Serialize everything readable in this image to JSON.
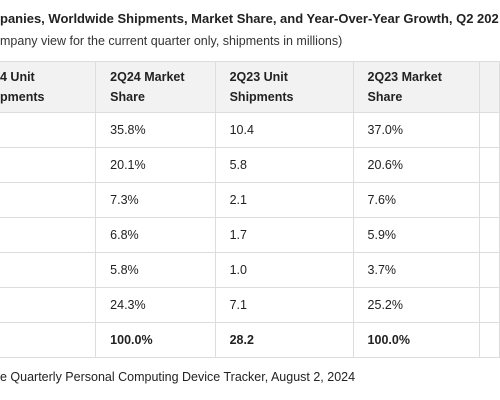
{
  "header": {
    "title": "panies, Worldwide Shipments, Market Share, and Year-Over-Year Growth, Q2 202",
    "subtitle": "mpany view for the current quarter only, shipments in millions)"
  },
  "table": {
    "columns": [
      [
        "4 Unit",
        "pments"
      ],
      [
        "2Q24 Market",
        "Share"
      ],
      [
        "2Q23 Unit",
        "Shipments"
      ],
      [
        "2Q23 Market",
        "Share"
      ]
    ],
    "rows": [
      [
        "",
        "35.8%",
        "10.4",
        "37.0%"
      ],
      [
        "",
        "20.1%",
        "5.8",
        "20.6%"
      ],
      [
        "",
        "7.3%",
        "2.1",
        "7.6%"
      ],
      [
        "",
        "6.8%",
        "1.7",
        "5.9%"
      ],
      [
        "",
        "5.8%",
        "1.0",
        "3.7%"
      ],
      [
        "",
        "24.3%",
        "7.1",
        "25.2%"
      ],
      [
        "",
        "100.0%",
        "28.2",
        "100.0%"
      ]
    ]
  },
  "footer": "e Quarterly Personal Computing Device Tracker, August 2, 2024"
}
